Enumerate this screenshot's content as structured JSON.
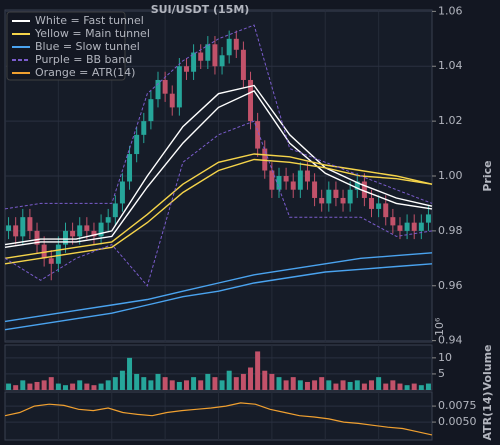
{
  "chart_data": [
    {
      "type": "candlestick",
      "title": "SUI/USDT (15M)",
      "y_label": "Price",
      "grid": true,
      "up_color": "#26a69a",
      "down_color": "#c2526a",
      "open": [
        0.98,
        0.982,
        0.978,
        0.985,
        0.98,
        0.975,
        0.97,
        0.968,
        0.975,
        0.98,
        0.978,
        0.982,
        0.98,
        0.978,
        0.983,
        0.985,
        0.99,
        0.998,
        1.008,
        1.015,
        1.02,
        1.028,
        1.035,
        1.03,
        1.025,
        1.04,
        1.038,
        1.045,
        1.042,
        1.048,
        1.04,
        1.044,
        1.05,
        1.046,
        1.035,
        1.02,
        1.01,
        1.002,
        0.995,
        1.0,
        0.998,
        0.995,
        1.002,
        0.998,
        0.992,
        0.99,
        0.995,
        0.992,
        0.99,
        0.995,
        0.998,
        0.992,
        0.988,
        0.99,
        0.985,
        0.982,
        0.98,
        0.983,
        0.98,
        0.983
      ],
      "high": [
        0.985,
        0.985,
        0.988,
        0.988,
        0.983,
        0.978,
        0.973,
        0.978,
        0.983,
        0.983,
        0.985,
        0.985,
        0.983,
        0.986,
        0.988,
        0.993,
        1.001,
        1.011,
        1.018,
        1.023,
        1.031,
        1.038,
        1.038,
        1.033,
        1.043,
        1.043,
        1.048,
        1.048,
        1.051,
        1.051,
        1.047,
        1.053,
        1.053,
        1.049,
        1.038,
        1.023,
        1.013,
        1.005,
        1.003,
        1.003,
        1.001,
        1.005,
        1.005,
        1.001,
        0.995,
        0.998,
        0.998,
        0.995,
        0.998,
        1.001,
        1.001,
        0.995,
        0.993,
        0.993,
        0.988,
        0.985,
        0.986,
        0.986,
        0.986,
        0.989
      ],
      "low": [
        0.977,
        0.975,
        0.975,
        0.977,
        0.972,
        0.967,
        0.962,
        0.965,
        0.972,
        0.975,
        0.975,
        0.977,
        0.975,
        0.975,
        0.98,
        0.982,
        0.987,
        0.995,
        1.005,
        1.012,
        1.017,
        1.025,
        1.027,
        1.022,
        1.022,
        1.035,
        1.035,
        1.039,
        1.039,
        1.037,
        1.037,
        1.041,
        1.043,
        1.032,
        1.017,
        1.007,
        0.999,
        0.992,
        0.992,
        0.995,
        0.992,
        0.992,
        0.995,
        0.989,
        0.987,
        0.987,
        0.989,
        0.987,
        0.987,
        0.992,
        0.989,
        0.985,
        0.985,
        0.982,
        0.979,
        0.977,
        0.977,
        0.977,
        0.977,
        0.98
      ],
      "close": [
        0.982,
        0.978,
        0.985,
        0.98,
        0.975,
        0.97,
        0.968,
        0.975,
        0.98,
        0.978,
        0.982,
        0.98,
        0.978,
        0.983,
        0.985,
        0.99,
        0.998,
        1.008,
        1.015,
        1.02,
        1.028,
        1.035,
        1.03,
        1.025,
        1.04,
        1.038,
        1.045,
        1.042,
        1.048,
        1.04,
        1.044,
        1.05,
        1.046,
        1.035,
        1.02,
        1.01,
        1.002,
        0.995,
        1.0,
        0.998,
        0.995,
        1.002,
        0.998,
        0.992,
        0.99,
        0.995,
        0.992,
        0.99,
        0.995,
        0.998,
        0.992,
        0.988,
        0.99,
        0.985,
        0.982,
        0.98,
        0.983,
        0.98,
        0.983,
        0.986
      ],
      "series": [
        {
          "name": "White = Fast tunnel",
          "color": "#ffffff",
          "upper": [
            0.975,
            0.977,
            0.977,
            0.98,
            1.0,
            1.018,
            1.03,
            1.033,
            1.015,
            1.003,
            0.997,
            0.992,
            0.989
          ],
          "lower": [
            0.974,
            0.976,
            0.976,
            0.978,
            0.996,
            1.012,
            1.025,
            1.031,
            1.012,
            1.001,
            0.995,
            0.99,
            0.988
          ]
        },
        {
          "name": "Yellow = Main tunnel",
          "color": "#f5d44a",
          "upper": [
            0.97,
            0.972,
            0.974,
            0.976,
            0.986,
            0.997,
            1.005,
            1.008,
            1.007,
            1.004,
            1.002,
            1.0,
            0.997
          ],
          "lower": [
            0.968,
            0.97,
            0.972,
            0.974,
            0.983,
            0.994,
            1.002,
            1.006,
            1.005,
            1.003,
            1.0,
            0.999,
            0.997
          ]
        },
        {
          "name": "Blue = Slow tunnel",
          "color": "#4aa3ef",
          "upper": [
            0.947,
            0.949,
            0.951,
            0.953,
            0.955,
            0.958,
            0.961,
            0.964,
            0.966,
            0.968,
            0.97,
            0.971,
            0.972
          ],
          "lower": [
            0.944,
            0.946,
            0.948,
            0.95,
            0.953,
            0.956,
            0.958,
            0.961,
            0.963,
            0.965,
            0.966,
            0.967,
            0.968
          ]
        },
        {
          "name": "Purple = BB band",
          "color": "#7a5ccc",
          "dashed": true,
          "upper": [
            0.988,
            0.99,
            0.99,
            0.99,
            1.03,
            1.042,
            1.05,
            1.055,
            1.01,
            1.005,
            1.0,
            0.995,
            0.99
          ],
          "lower": [
            0.97,
            0.962,
            0.97,
            0.975,
            0.96,
            1.005,
            1.015,
            1.02,
            0.985,
            0.985,
            0.985,
            0.978,
            0.98
          ]
        }
      ],
      "ylim": [
        0.9395,
        1.0605
      ],
      "yticks": [
        1.06,
        1.04,
        1.02,
        {
          "value": 1.0,
          "label": "1.00"
        },
        0.98,
        0.96,
        0.94
      ]
    },
    {
      "type": "bar",
      "y_label": "Volume",
      "offset_label": "10⁶",
      "grid": true,
      "values": [
        2,
        1.5,
        3,
        2,
        2.5,
        3,
        4,
        2,
        1.5,
        2,
        3,
        2,
        1.5,
        2,
        3,
        4,
        6,
        10,
        5,
        4,
        3,
        5,
        4,
        3,
        2.5,
        3,
        4,
        3,
        5,
        4,
        3,
        6,
        4,
        5,
        7,
        12,
        6,
        5,
        4,
        3,
        4,
        3,
        2.5,
        3,
        4,
        3,
        2,
        3,
        2.5,
        3,
        2,
        3,
        4,
        2,
        3,
        2,
        1.5,
        2,
        1.5,
        2
      ],
      "ylim": [
        0,
        14
      ],
      "yticks": [
        5,
        10
      ]
    },
    {
      "type": "line",
      "y_label": "ATR(14)",
      "grid": true,
      "series": [
        {
          "name": "Orange = ATR(14)",
          "color": "#f0a030",
          "values": [
            0.006,
            0.0065,
            0.0075,
            0.0078,
            0.0076,
            0.007,
            0.0068,
            0.0072,
            0.0065,
            0.0062,
            0.006,
            0.0065,
            0.0068,
            0.007,
            0.0072,
            0.0075,
            0.008,
            0.0078,
            0.007,
            0.0065,
            0.006,
            0.0058,
            0.0055,
            0.005,
            0.0048,
            0.0045,
            0.0042,
            0.004,
            0.0035,
            0.003
          ]
        }
      ],
      "ylim": [
        0.0022,
        0.0097
      ],
      "yticks": [
        {
          "value": 0.005,
          "label": "0.0050"
        },
        0.0075
      ]
    }
  ]
}
